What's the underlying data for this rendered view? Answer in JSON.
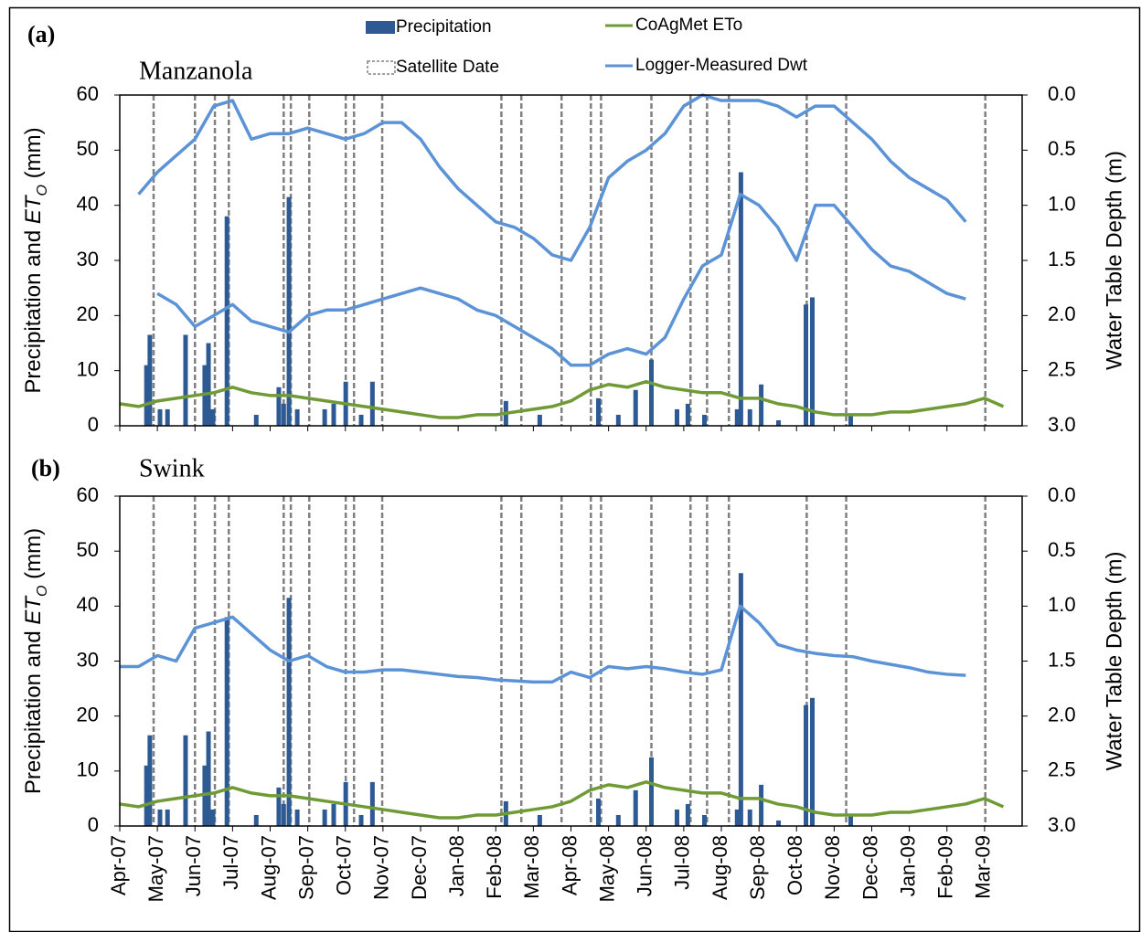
{
  "chart_data": [
    {
      "type": "bar-line",
      "label": "(a)",
      "site": "Manzanola",
      "y_label": [
        "Precipitation and ",
        "ET",
        "O",
        " (mm)"
      ],
      "y2_label": "Water Table Depth (m)",
      "xlim": [
        0,
        24
      ],
      "xticks": [
        0,
        1,
        2,
        3,
        4,
        5,
        6,
        7,
        8,
        9,
        10,
        11,
        12,
        13,
        14,
        15,
        16,
        17,
        18,
        19,
        20,
        21,
        22,
        23
      ],
      "ylim": [
        0,
        60
      ],
      "yticks": [
        0,
        10,
        20,
        30,
        40,
        50,
        60
      ],
      "y2lim": [
        3,
        0
      ],
      "y2ticks": [
        {
          "value": 0,
          "label": "0.0"
        },
        {
          "value": 0.5,
          "label": "0.5"
        },
        {
          "value": 1,
          "label": "1.0"
        },
        {
          "value": 1.5,
          "label": "1.5"
        },
        {
          "value": 2,
          "label": "2.0"
        },
        {
          "value": 2.5,
          "label": "2.5"
        },
        {
          "value": 3,
          "label": "3.0"
        }
      ],
      "x": [
        0,
        0.5,
        1,
        1.5,
        2,
        2.5,
        3,
        3.5,
        4,
        4.5,
        5,
        5.5,
        6,
        6.5,
        7,
        7.5,
        8,
        8.5,
        9,
        9.5,
        10,
        10.5,
        11,
        11.5,
        12,
        12.5,
        13,
        13.5,
        14,
        14.5,
        15,
        15.5,
        16,
        16.5,
        17,
        17.5,
        18,
        18.5,
        19,
        19.5,
        20,
        20.5,
        21,
        21.5,
        22,
        22.5,
        23,
        23.5
      ],
      "satellite_dates": {
        "name": "Satellite Date",
        "color": "#808080",
        "x": [
          0.9,
          2.0,
          2.53,
          2.9,
          4.36,
          4.55,
          5.04,
          6.01,
          6.23,
          6.98,
          10.15,
          10.68,
          11.75,
          12.53,
          12.8,
          14.14,
          15.18,
          15.62,
          16.2,
          18.27,
          19.32,
          23.02
        ]
      },
      "series": [
        {
          "name": "Precipitation",
          "type": "bar",
          "color": "#2e5a94",
          "x": [
            0.71,
            0.8,
            1.07,
            1.27,
            1.75,
            2.26,
            2.36,
            2.48,
            2.85,
            3.63,
            4.23,
            4.36,
            4.5,
            4.72,
            5.45,
            5.69,
            6.01,
            6.42,
            6.72,
            10.27,
            11.17,
            12.73,
            13.26,
            13.72,
            14.14,
            14.82,
            15.11,
            15.55,
            16.42,
            16.52,
            16.76,
            17.06,
            17.52,
            18.25,
            18.42,
            19.44
          ],
          "values": [
            11,
            16.5,
            3,
            3,
            16.5,
            11,
            15,
            3,
            38,
            2,
            7,
            4,
            41.5,
            3,
            3,
            4,
            8,
            2,
            8,
            4.5,
            2,
            5,
            2,
            6.5,
            12,
            3,
            4,
            2,
            3,
            46,
            3,
            7.5,
            1,
            22,
            23.3,
            2
          ]
        },
        {
          "name": "CoAgMet ETo",
          "type": "line",
          "color": "#6f9a36",
          "values": [
            4,
            3.5,
            4.5,
            5,
            5.5,
            6,
            7,
            6,
            5.5,
            5.5,
            5,
            4.5,
            4,
            3.5,
            3,
            2.5,
            2,
            1.5,
            1.5,
            2,
            2,
            2.5,
            3,
            3.5,
            4.5,
            6.5,
            7.5,
            7,
            8,
            7,
            6.5,
            6,
            6,
            5,
            5,
            4,
            3.5,
            2.5,
            2,
            2,
            2,
            2.5,
            2.5,
            3,
            3.5,
            4,
            5,
            3.5
          ]
        },
        {
          "name": "Logger-Measured Dwt",
          "type": "line",
          "axis": "y2",
          "color": "#5b93d6",
          "values": [
            null,
            0.9,
            0.7,
            0.55,
            0.4,
            0.1,
            0.05,
            0.4,
            0.35,
            0.35,
            0.3,
            0.35,
            0.4,
            0.35,
            0.25,
            0.25,
            0.4,
            0.65,
            0.85,
            1.0,
            1.15,
            1.2,
            1.3,
            1.45,
            1.5,
            1.2,
            0.75,
            0.6,
            0.5,
            0.35,
            0.1,
            0,
            0.05,
            0.05,
            0.05,
            0.1,
            0.2,
            0.1,
            0.1,
            0.25,
            0.4,
            0.6,
            0.75,
            0.85,
            0.95,
            1.15,
            null,
            null
          ]
        },
        {
          "name": "Logger-Measured Dwt",
          "type": "line",
          "axis": "y2",
          "color": "#5b93d6",
          "values": [
            null,
            null,
            1.8,
            1.9,
            2.1,
            2.0,
            1.9,
            2.05,
            2.1,
            2.15,
            2.0,
            1.95,
            1.95,
            1.9,
            1.85,
            1.8,
            1.75,
            1.8,
            1.85,
            1.95,
            2.0,
            2.1,
            2.2,
            2.3,
            2.45,
            2.45,
            2.35,
            2.3,
            2.35,
            2.2,
            1.85,
            1.55,
            1.45,
            0.9,
            1.0,
            1.2,
            1.5,
            1.0,
            1.0,
            1.2,
            1.4,
            1.55,
            1.6,
            1.7,
            1.8,
            1.85,
            null,
            null
          ]
        }
      ]
    },
    {
      "type": "bar-line",
      "label": "(b)",
      "site": "Swink",
      "y_label": [
        "Precipitation and ",
        "ET",
        "O",
        " (mm)"
      ],
      "y2_label": "Water Table Depth (m)",
      "xlim": [
        0,
        24
      ],
      "xticks": [
        {
          "value": 0,
          "label": "Apr-07"
        },
        {
          "value": 1,
          "label": "May-07"
        },
        {
          "value": 2,
          "label": "Jun-07"
        },
        {
          "value": 3,
          "label": "Jul-07"
        },
        {
          "value": 4,
          "label": "Aug-07"
        },
        {
          "value": 5,
          "label": "Sep-07"
        },
        {
          "value": 6,
          "label": "Oct-07"
        },
        {
          "value": 7,
          "label": "Nov-07"
        },
        {
          "value": 8,
          "label": "Dec-07"
        },
        {
          "value": 9,
          "label": "Jan-08"
        },
        {
          "value": 10,
          "label": "Feb-08"
        },
        {
          "value": 11,
          "label": "Mar-08"
        },
        {
          "value": 12,
          "label": "Apr-08"
        },
        {
          "value": 13,
          "label": "May-08"
        },
        {
          "value": 14,
          "label": "Jun-08"
        },
        {
          "value": 15,
          "label": "Jul-08"
        },
        {
          "value": 16,
          "label": "Aug-08"
        },
        {
          "value": 17,
          "label": "Sep-08"
        },
        {
          "value": 18,
          "label": "Oct-08"
        },
        {
          "value": 19,
          "label": "Nov-08"
        },
        {
          "value": 20,
          "label": "Dec-08"
        },
        {
          "value": 21,
          "label": "Jan-09"
        },
        {
          "value": 22,
          "label": "Feb-09"
        },
        {
          "value": 23,
          "label": "Mar-09"
        }
      ],
      "ylim": [
        0,
        60
      ],
      "yticks": [
        0,
        10,
        20,
        30,
        40,
        50,
        60
      ],
      "y2lim": [
        3,
        0
      ],
      "y2ticks": [
        {
          "value": 0,
          "label": "0.0"
        },
        {
          "value": 0.5,
          "label": "0.5"
        },
        {
          "value": 1,
          "label": "1.0"
        },
        {
          "value": 1.5,
          "label": "1.5"
        },
        {
          "value": 2,
          "label": "2.0"
        },
        {
          "value": 2.5,
          "label": "2.5"
        },
        {
          "value": 3,
          "label": "3.0"
        }
      ],
      "x": [
        0,
        0.5,
        1,
        1.5,
        2,
        2.5,
        3,
        3.5,
        4,
        4.5,
        5,
        5.5,
        6,
        6.5,
        7,
        7.5,
        8,
        8.5,
        9,
        9.5,
        10,
        10.5,
        11,
        11.5,
        12,
        12.5,
        13,
        13.5,
        14,
        14.5,
        15,
        15.5,
        16,
        16.5,
        17,
        17.5,
        18,
        18.5,
        19,
        19.5,
        20,
        20.5,
        21,
        21.5,
        22,
        22.5,
        23,
        23.5
      ],
      "satellite_dates": {
        "name": "Satellite Date",
        "color": "#808080",
        "x": [
          0.9,
          2.0,
          2.53,
          2.9,
          4.36,
          4.55,
          5.04,
          6.01,
          6.23,
          6.98,
          10.15,
          10.68,
          11.75,
          12.53,
          12.8,
          14.14,
          15.18,
          15.62,
          16.2,
          18.27,
          19.32,
          23.02
        ]
      },
      "series": [
        {
          "name": "Precipitation",
          "type": "bar",
          "color": "#2e5a94",
          "x": [
            0.71,
            0.8,
            1.07,
            1.27,
            1.75,
            2.26,
            2.36,
            2.48,
            2.85,
            3.63,
            4.23,
            4.36,
            4.5,
            4.72,
            5.45,
            5.69,
            6.01,
            6.42,
            6.72,
            10.27,
            11.17,
            12.73,
            13.26,
            13.72,
            14.14,
            14.82,
            15.11,
            15.55,
            16.42,
            16.52,
            16.76,
            17.06,
            17.52,
            18.25,
            18.42,
            19.44
          ],
          "values": [
            11,
            16.5,
            3,
            3,
            16.5,
            11,
            17.2,
            3,
            38,
            2,
            7,
            4,
            41.5,
            3,
            3,
            4,
            8,
            2,
            8,
            4.5,
            2,
            5,
            2,
            6.5,
            12.5,
            3,
            4,
            2,
            3,
            46,
            3,
            7.5,
            1,
            22,
            23.3,
            2
          ]
        },
        {
          "name": "CoAgMet ETo",
          "type": "line",
          "color": "#6f9a36",
          "values": [
            4,
            3.5,
            4.5,
            5,
            5.5,
            6,
            7,
            6,
            5.5,
            5.5,
            5,
            4.5,
            4,
            3.5,
            3,
            2.5,
            2,
            1.5,
            1.5,
            2,
            2,
            2.5,
            3,
            3.5,
            4.5,
            6.5,
            7.5,
            7,
            8,
            7,
            6.5,
            6,
            6,
            5,
            5,
            4,
            3.5,
            2.5,
            2,
            2,
            2,
            2.5,
            2.5,
            3,
            3.5,
            4,
            5,
            3.5
          ]
        },
        {
          "name": "Logger-Measured Dwt",
          "type": "line",
          "axis": "y2",
          "color": "#5b93d6",
          "values": [
            1.55,
            1.55,
            1.45,
            1.5,
            1.2,
            1.15,
            1.1,
            1.25,
            1.4,
            1.5,
            1.45,
            1.55,
            1.6,
            1.6,
            1.58,
            1.58,
            1.6,
            1.62,
            1.64,
            1.65,
            1.67,
            1.68,
            1.69,
            1.69,
            1.6,
            1.65,
            1.55,
            1.57,
            1.55,
            1.57,
            1.6,
            1.62,
            1.58,
            1.0,
            1.15,
            1.35,
            1.4,
            1.43,
            1.45,
            1.46,
            1.5,
            1.53,
            1.56,
            1.6,
            1.62,
            1.63,
            null,
            null
          ]
        }
      ]
    }
  ]
}
